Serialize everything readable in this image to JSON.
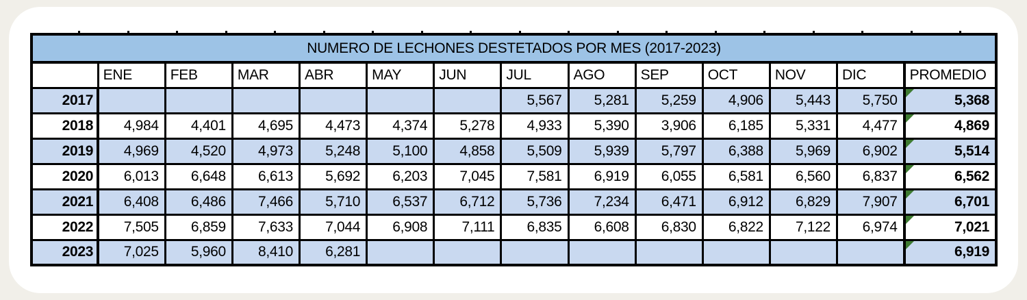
{
  "table": {
    "title": "NUMERO DE LECHONES DESTETADOS POR MES (2017-2023)",
    "columns": [
      "",
      "ENE",
      "FEB",
      "MAR",
      "ABR",
      "MAY",
      "JUN",
      "JUL",
      "AGO",
      "SEP",
      "OCT",
      "NOV",
      "DIC",
      "PROMEDIO"
    ],
    "rows": [
      {
        "year": "2017",
        "values": [
          "",
          "",
          "",
          "",
          "",
          "",
          "5,567",
          "5,281",
          "5,259",
          "4,906",
          "5,443",
          "5,750"
        ],
        "promedio": "5,368"
      },
      {
        "year": "2018",
        "values": [
          "4,984",
          "4,401",
          "4,695",
          "4,473",
          "4,374",
          "5,278",
          "4,933",
          "5,390",
          "3,906",
          "6,185",
          "5,331",
          "4,477"
        ],
        "promedio": "4,869"
      },
      {
        "year": "2019",
        "values": [
          "4,969",
          "4,520",
          "4,973",
          "5,248",
          "5,100",
          "4,858",
          "5,509",
          "5,939",
          "5,797",
          "6,388",
          "5,969",
          "6,902"
        ],
        "promedio": "5,514"
      },
      {
        "year": "2020",
        "values": [
          "6,013",
          "6,648",
          "6,613",
          "5,692",
          "6,203",
          "7,045",
          "7,581",
          "6,919",
          "6,055",
          "6,581",
          "6,560",
          "6,837"
        ],
        "promedio": "6,562"
      },
      {
        "year": "2021",
        "values": [
          "6,408",
          "6,486",
          "7,466",
          "5,710",
          "6,537",
          "6,712",
          "5,736",
          "7,234",
          "6,471",
          "6,912",
          "6,829",
          "7,907"
        ],
        "promedio": "6,701"
      },
      {
        "year": "2022",
        "values": [
          "7,505",
          "6,859",
          "7,633",
          "7,044",
          "6,908",
          "7,111",
          "6,835",
          "6,608",
          "6,830",
          "6,822",
          "7,122",
          "6,974"
        ],
        "promedio": "7,021"
      },
      {
        "year": "2023",
        "values": [
          "7,025",
          "5,960",
          "8,410",
          "6,281",
          "",
          "",
          "",
          "",
          "",
          "",
          "",
          ""
        ],
        "promedio": "6,919"
      }
    ]
  },
  "colors": {
    "title_row_bg": "#9DC3E6",
    "alt_row_bg": "#C9D9F0",
    "border": "#000000",
    "error_triangle_green": "#3E7B32",
    "page_bg": "#F1EFE9",
    "card_bg": "#FFFFFF"
  },
  "chart_data": {
    "type": "table",
    "title": "NUMERO DE LECHONES DESTETADOS POR MES (2017-2023)",
    "categories": [
      "ENE",
      "FEB",
      "MAR",
      "ABR",
      "MAY",
      "JUN",
      "JUL",
      "AGO",
      "SEP",
      "OCT",
      "NOV",
      "DIC"
    ],
    "series": [
      {
        "name": "2017",
        "values": [
          null,
          null,
          null,
          null,
          null,
          null,
          5567,
          5281,
          5259,
          4906,
          5443,
          5750
        ],
        "promedio": 5368
      },
      {
        "name": "2018",
        "values": [
          4984,
          4401,
          4695,
          4473,
          4374,
          5278,
          4933,
          5390,
          3906,
          6185,
          5331,
          4477
        ],
        "promedio": 4869
      },
      {
        "name": "2019",
        "values": [
          4969,
          4520,
          4973,
          5248,
          5100,
          4858,
          5509,
          5939,
          5797,
          6388,
          5969,
          6902
        ],
        "promedio": 5514
      },
      {
        "name": "2020",
        "values": [
          6013,
          6648,
          6613,
          5692,
          6203,
          7045,
          7581,
          6919,
          6055,
          6581,
          6560,
          6837
        ],
        "promedio": 6562
      },
      {
        "name": "2021",
        "values": [
          6408,
          6486,
          7466,
          5710,
          6537,
          6712,
          5736,
          7234,
          6471,
          6912,
          6829,
          7907
        ],
        "promedio": 6701
      },
      {
        "name": "2022",
        "values": [
          7505,
          6859,
          7633,
          7044,
          6908,
          7111,
          6835,
          6608,
          6830,
          6822,
          7122,
          6974
        ],
        "promedio": 7021
      },
      {
        "name": "2023",
        "values": [
          7025,
          5960,
          8410,
          6281,
          null,
          null,
          null,
          null,
          null,
          null,
          null,
          null
        ],
        "promedio": 6919
      }
    ]
  }
}
